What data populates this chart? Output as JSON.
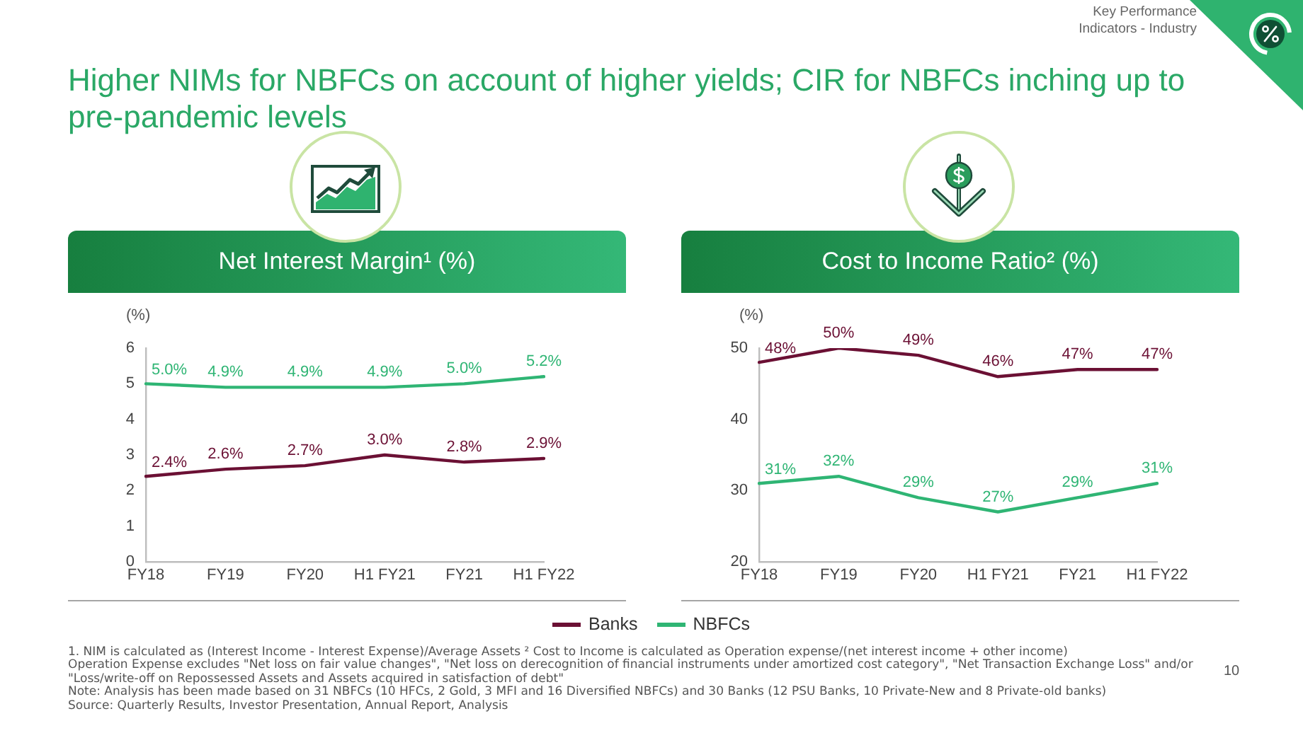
{
  "chart_data": [
    {
      "type": "other",
      "title": "Higher NIMs for NBFCs on account of higher yields; CIR for NBFCs inching up to pre-pandemic levels",
      "annotations": [
        "Key Performance Indicators - Industry"
      ]
    },
    {
      "type": "line",
      "title": "Net Interest Margin¹ (%)",
      "ylabel": "(%)",
      "categories": [
        "FY18",
        "FY19",
        "FY20",
        "H1 FY21",
        "FY21",
        "H1 FY22"
      ],
      "series": [
        {
          "name": "Banks",
          "color": "#6b1034",
          "values": [
            2.4,
            2.6,
            2.7,
            3.0,
            2.8,
            2.9
          ],
          "value_labels": [
            "2.4%",
            "2.6%",
            "2.7%",
            "3.0%",
            "2.8%",
            "2.9%"
          ]
        },
        {
          "name": "NBFCs",
          "color": "#2fb574",
          "values": [
            5.0,
            4.9,
            4.9,
            4.9,
            5.0,
            5.2
          ],
          "value_labels": [
            "5.0%",
            "4.9%",
            "4.9%",
            "4.9%",
            "5.0%",
            "5.2%"
          ]
        }
      ],
      "ylim": [
        0,
        6
      ],
      "yticks": [
        0,
        1,
        2,
        3,
        4,
        5,
        6
      ],
      "legend": "bottom"
    },
    {
      "type": "line",
      "title": "Cost to Income Ratio² (%)",
      "ylabel": "(%)",
      "categories": [
        "FY18",
        "FY19",
        "FY20",
        "H1 FY21",
        "FY21",
        "H1 FY22"
      ],
      "series": [
        {
          "name": "Banks",
          "color": "#6b1034",
          "values": [
            48,
            50,
            49,
            46,
            47,
            47
          ],
          "value_labels": [
            "48%",
            "50%",
            "49%",
            "46%",
            "47%",
            "47%"
          ]
        },
        {
          "name": "NBFCs",
          "color": "#2fb574",
          "values": [
            31,
            32,
            29,
            27,
            29,
            31
          ],
          "value_labels": [
            "31%",
            "32%",
            "29%",
            "27%",
            "29%",
            "31%"
          ]
        }
      ],
      "ylim": [
        20,
        50
      ],
      "yticks": [
        20,
        30,
        40,
        50
      ],
      "legend": "bottom"
    },
    {
      "type": "other",
      "annotations": [
        "1. NIM is calculated as (Interest Income - Interest Expense)/Average Assets ² Cost to Income is calculated as Operation expense/(net interest income + other income)",
        "Operation Expense excludes \"Net loss on fair value changes\", \"Net loss on derecognition of financial instruments under amortized cost category\", \"Net Transaction Exchange Loss\" and/or \"Loss/write-off on Repossessed Assets and Assets acquired in satisfaction of debt\"",
        "Note: Analysis has been made based on 31 NBFCs (10 HFCs, 2 Gold, 3 MFI and 16 Diversified NBFCs) and 30 Banks (12 PSU Banks, 10 Private-New and 8 Private-old banks)",
        "Source: Quarterly Results, Investor Presentation, Annual Report, Analysis",
        "10"
      ]
    }
  ]
}
